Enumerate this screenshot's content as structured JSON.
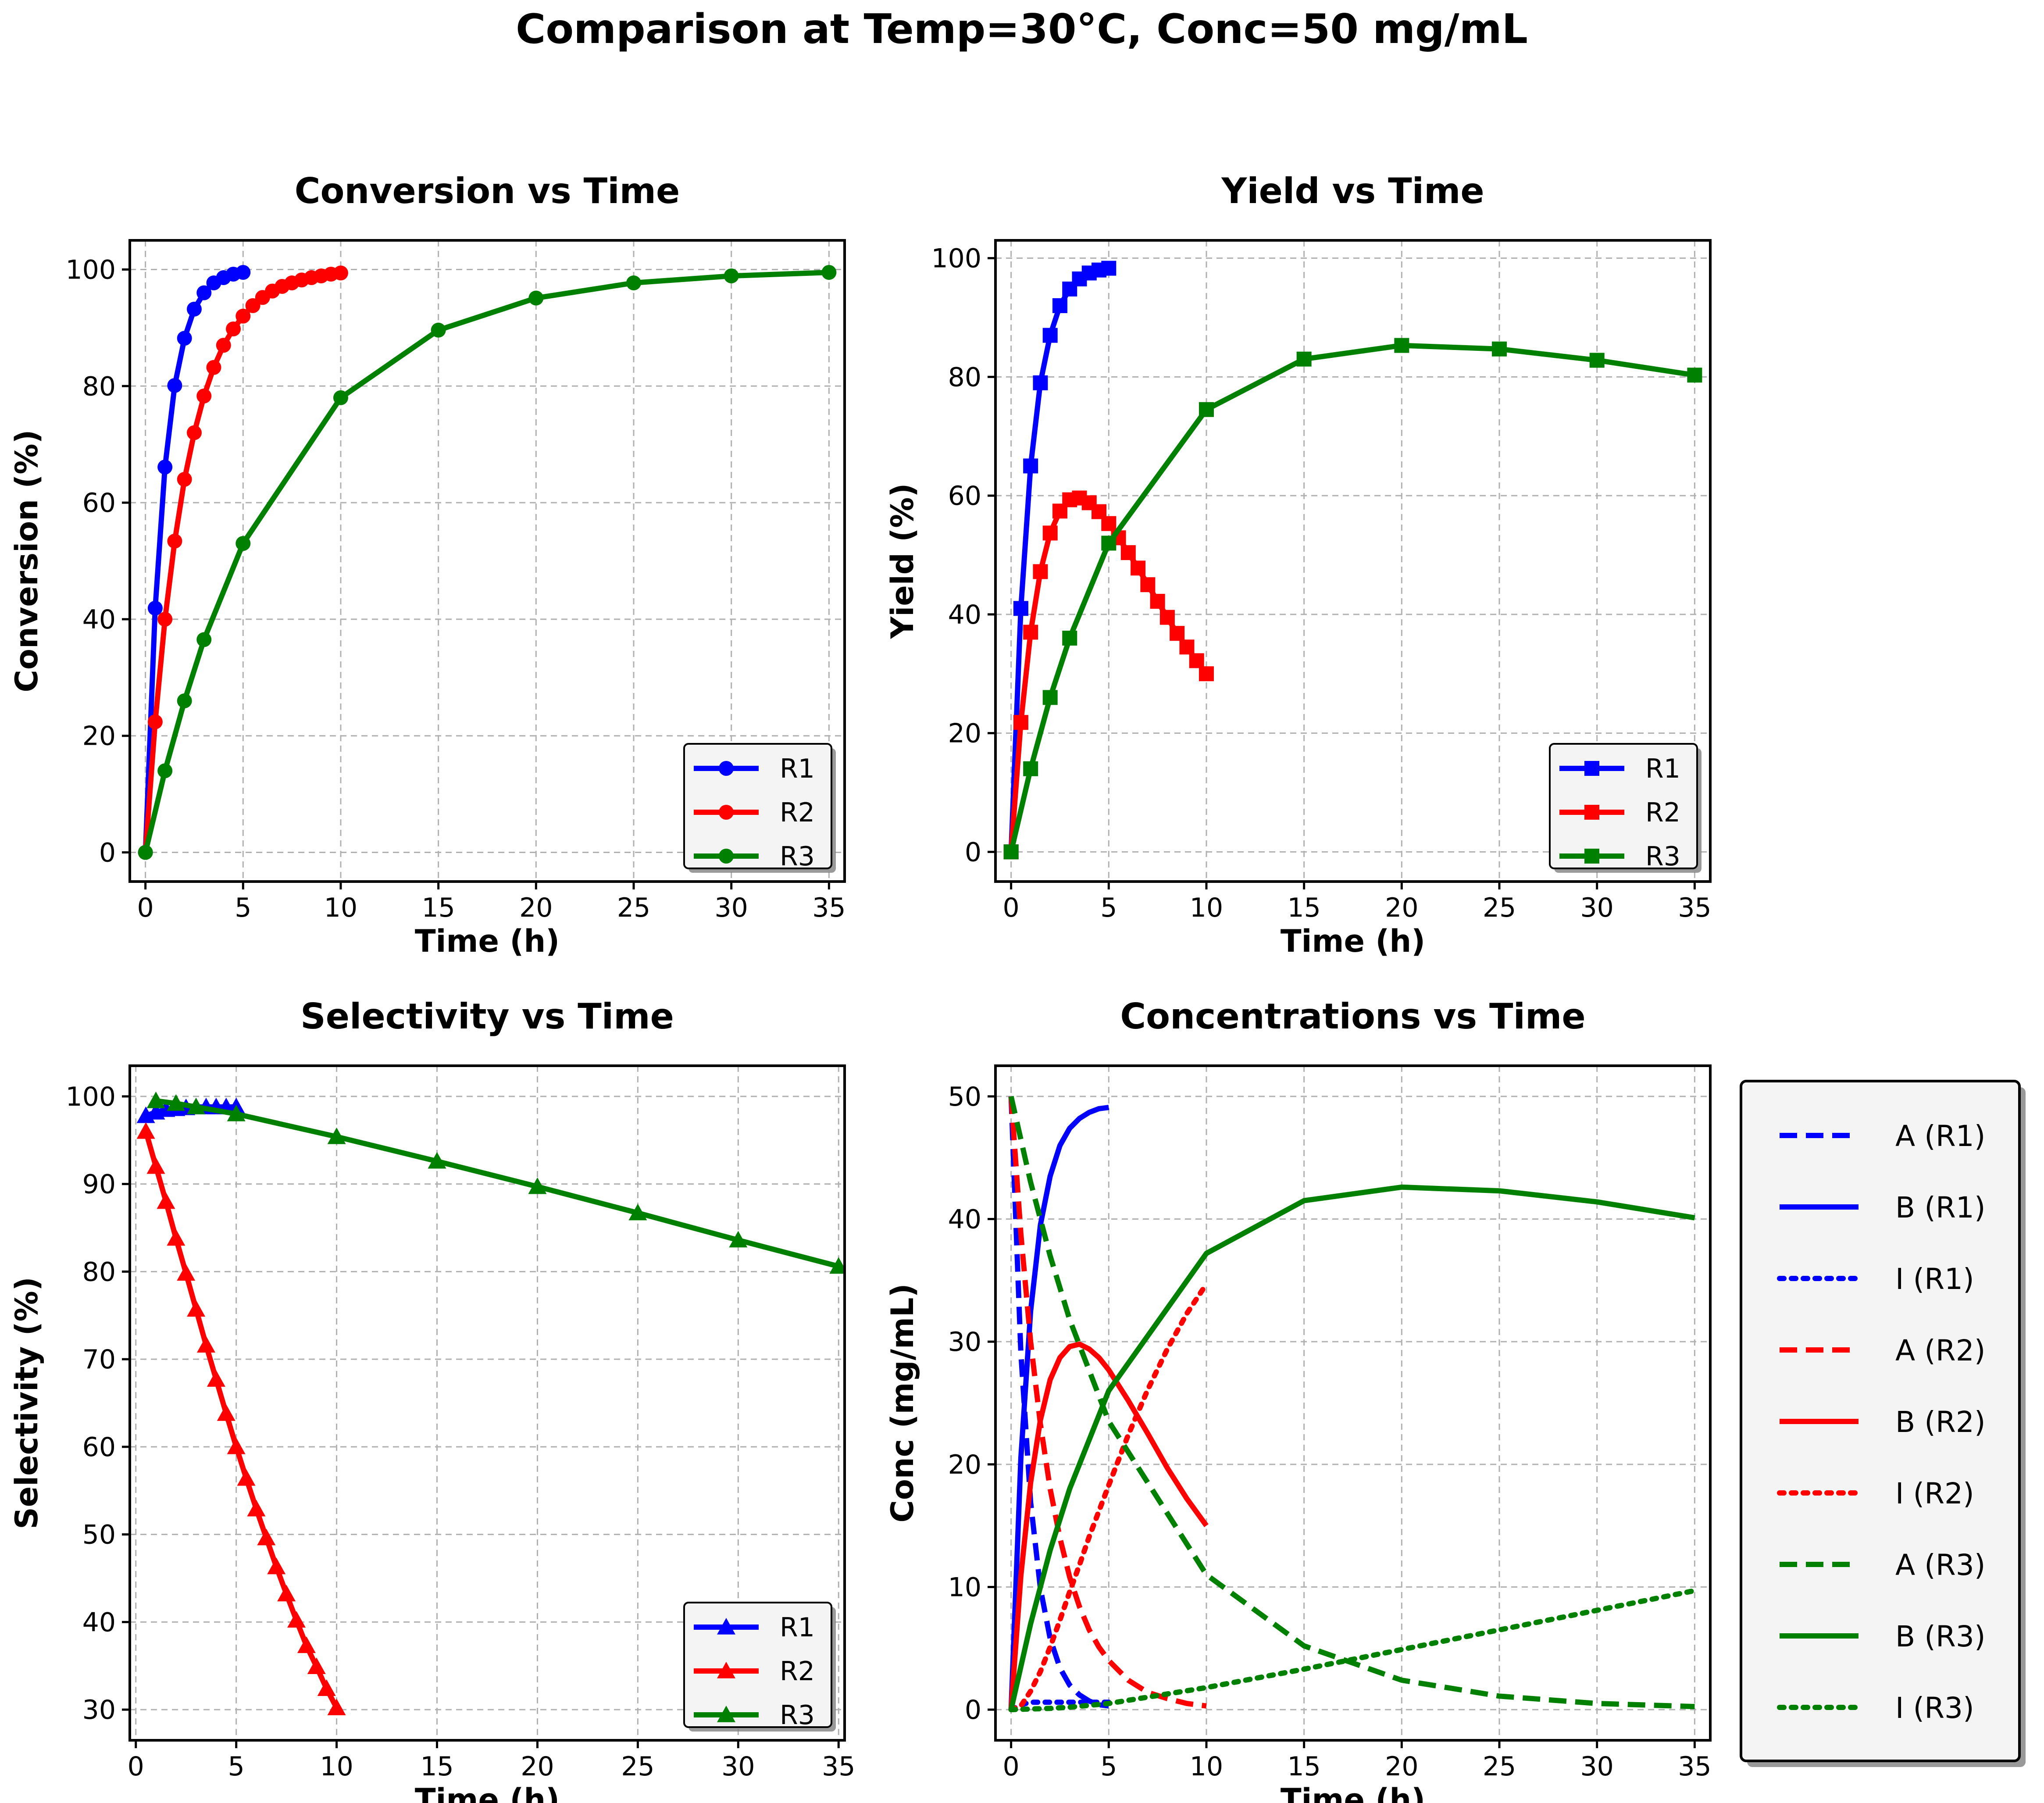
{
  "figure": {
    "title": "Comparison at Temp=30°C, Conc=50 mg/mL"
  },
  "colors": {
    "R1": "#0000ff",
    "R2": "#ff0000",
    "R3": "#008000"
  },
  "chart_data": [
    {
      "id": "conversion",
      "type": "line",
      "title": "Conversion vs Time",
      "xlabel": "Time (h)",
      "ylabel": "Conversion (%)",
      "xlim": [
        -0.8,
        35.8
      ],
      "ylim": [
        -5,
        105
      ],
      "xticks": [
        0,
        5,
        10,
        15,
        20,
        25,
        30,
        35
      ],
      "yticks": [
        0,
        20,
        40,
        60,
        80,
        100
      ],
      "grid": true,
      "legend": "lower-right",
      "marker": "circle",
      "series": [
        {
          "name": "R1",
          "color": "#0000ff",
          "x": [
            0,
            0.5,
            1,
            1.5,
            2,
            2.5,
            3,
            3.5,
            4,
            4.5,
            5
          ],
          "y": [
            0,
            41.9,
            66.1,
            80.1,
            88.2,
            93.2,
            96.0,
            97.7,
            98.6,
            99.2,
            99.5
          ]
        },
        {
          "name": "R2",
          "color": "#ff0000",
          "x": [
            0,
            0.5,
            1,
            1.5,
            2,
            2.5,
            3,
            3.5,
            4,
            4.5,
            5,
            5.5,
            6,
            6.5,
            7,
            7.5,
            8,
            8.5,
            9,
            9.5,
            10
          ],
          "y": [
            0,
            22.4,
            40.0,
            53.4,
            64.0,
            72.0,
            78.3,
            83.2,
            87.0,
            89.8,
            92.0,
            93.8,
            95.2,
            96.3,
            97.1,
            97.7,
            98.2,
            98.6,
            98.9,
            99.2,
            99.4
          ]
        },
        {
          "name": "R3",
          "color": "#008000",
          "x": [
            0,
            1,
            2,
            3,
            5,
            10,
            15,
            20,
            25,
            30,
            35
          ],
          "y": [
            0,
            14.0,
            26.0,
            36.5,
            53.0,
            78.0,
            89.6,
            95.1,
            97.7,
            98.9,
            99.5
          ]
        }
      ]
    },
    {
      "id": "yield",
      "type": "line",
      "title": "Yield vs Time",
      "xlabel": "Time (h)",
      "ylabel": "Yield (%)",
      "xlim": [
        -0.8,
        35.8
      ],
      "ylim": [
        -5,
        103
      ],
      "xticks": [
        0,
        5,
        10,
        15,
        20,
        25,
        30,
        35
      ],
      "yticks": [
        0,
        20,
        40,
        60,
        80,
        100
      ],
      "grid": true,
      "legend": "lower-right",
      "marker": "square",
      "series": [
        {
          "name": "R1",
          "color": "#0000ff",
          "x": [
            0,
            0.5,
            1,
            1.5,
            2,
            2.5,
            3,
            3.5,
            4,
            4.5,
            5
          ],
          "y": [
            0,
            41.0,
            65.0,
            79.0,
            87.0,
            92.0,
            94.8,
            96.5,
            97.5,
            98.0,
            98.3
          ]
        },
        {
          "name": "R2",
          "color": "#ff0000",
          "x": [
            0,
            0.5,
            1,
            1.5,
            2,
            2.5,
            3,
            3.5,
            4,
            4.5,
            5,
            5.5,
            6,
            6.5,
            7,
            7.5,
            8,
            8.5,
            9,
            9.5,
            10
          ],
          "y": [
            0,
            21.8,
            37.0,
            47.2,
            53.7,
            57.4,
            59.3,
            59.6,
            58.8,
            57.3,
            55.3,
            52.9,
            50.4,
            47.8,
            45.0,
            42.2,
            39.5,
            36.8,
            34.5,
            32.2,
            30.0
          ]
        },
        {
          "name": "R3",
          "color": "#008000",
          "x": [
            0,
            1,
            2,
            3,
            5,
            10,
            15,
            20,
            25,
            30,
            35
          ],
          "y": [
            0,
            14.0,
            26.0,
            36.0,
            52.0,
            74.5,
            83.0,
            85.3,
            84.7,
            82.8,
            80.3
          ]
        }
      ]
    },
    {
      "id": "selectivity",
      "type": "line",
      "title": "Selectivity vs Time",
      "xlabel": "Time (h)",
      "ylabel": "Selectivity (%)",
      "xlim": [
        -0.3,
        35.3
      ],
      "ylim": [
        26.5,
        103.5
      ],
      "xticks": [
        0,
        5,
        10,
        15,
        20,
        25,
        30,
        35
      ],
      "yticks": [
        30,
        40,
        50,
        60,
        70,
        80,
        90,
        100
      ],
      "grid": true,
      "legend": "lower-right",
      "marker": "triangle",
      "series": [
        {
          "name": "R1",
          "color": "#0000ff",
          "x": [
            0.5,
            1,
            1.5,
            2,
            2.5,
            3,
            3.5,
            4,
            4.5,
            5
          ],
          "y": [
            97.8,
            98.2,
            98.5,
            98.6,
            98.7,
            98.8,
            98.8,
            98.8,
            98.8,
            98.8
          ]
        },
        {
          "name": "R2",
          "color": "#ff0000",
          "x": [
            0.5,
            1,
            1.5,
            2,
            2.5,
            3,
            3.5,
            4,
            4.5,
            5,
            5.5,
            6,
            6.5,
            7,
            7.5,
            8,
            8.5,
            9,
            9.5,
            10
          ],
          "y": [
            96.0,
            92.0,
            88.0,
            83.8,
            79.8,
            75.7,
            71.6,
            67.7,
            63.8,
            60.0,
            56.4,
            52.9,
            49.6,
            46.3,
            43.2,
            40.2,
            37.3,
            34.9,
            32.4,
            30.2
          ]
        },
        {
          "name": "R3",
          "color": "#008000",
          "x": [
            1,
            2,
            3,
            5,
            10,
            15,
            20,
            25,
            30,
            35
          ],
          "y": [
            99.5,
            99.2,
            98.8,
            98.0,
            95.4,
            92.6,
            89.7,
            86.7,
            83.6,
            80.6
          ]
        }
      ]
    },
    {
      "id": "concentrations",
      "type": "line",
      "title": "Concentrations vs Time",
      "xlabel": "Time (h)",
      "ylabel": "Conc (mg/mL)",
      "xlim": [
        -0.8,
        35.8
      ],
      "ylim": [
        -2.5,
        52.5
      ],
      "xticks": [
        0,
        5,
        10,
        15,
        20,
        25,
        30,
        35
      ],
      "yticks": [
        0,
        10,
        20,
        30,
        40,
        50
      ],
      "grid": true,
      "legend": "outside-right",
      "marker": "none",
      "series": [
        {
          "name": "A (R1)",
          "color": "#0000ff",
          "style": "dashed",
          "x": [
            0,
            0.5,
            1,
            1.5,
            2,
            2.5,
            3,
            3.5,
            4,
            4.5,
            5
          ],
          "y": [
            50,
            29.1,
            16.9,
            9.9,
            5.8,
            3.4,
            2.0,
            1.2,
            0.7,
            0.4,
            0.3
          ]
        },
        {
          "name": "B (R1)",
          "color": "#0000ff",
          "style": "solid",
          "x": [
            0,
            0.5,
            1,
            1.5,
            2,
            2.5,
            3,
            3.5,
            4,
            4.5,
            5
          ],
          "y": [
            0,
            20.5,
            32.5,
            39.5,
            43.5,
            46.0,
            47.4,
            48.2,
            48.7,
            49.0,
            49.1
          ]
        },
        {
          "name": "I (R1)",
          "color": "#0000ff",
          "style": "dotted",
          "x": [
            0,
            0.5,
            1,
            1.5,
            2,
            2.5,
            3,
            3.5,
            4,
            4.5,
            5
          ],
          "y": [
            0,
            0.4,
            0.6,
            0.6,
            0.6,
            0.6,
            0.6,
            0.6,
            0.6,
            0.6,
            0.6
          ]
        },
        {
          "name": "A (R2)",
          "color": "#ff0000",
          "style": "dashed",
          "x": [
            0,
            0.5,
            1,
            1.5,
            2,
            2.5,
            3,
            3.5,
            4,
            4.5,
            5,
            6,
            7,
            8,
            9,
            10
          ],
          "y": [
            50,
            38.8,
            30.0,
            23.3,
            18.0,
            14.0,
            10.8,
            8.4,
            6.5,
            5.1,
            4.0,
            2.4,
            1.4,
            0.9,
            0.5,
            0.3
          ]
        },
        {
          "name": "B (R2)",
          "color": "#ff0000",
          "style": "solid",
          "x": [
            0,
            0.5,
            1,
            1.5,
            2,
            2.5,
            3,
            3.5,
            4,
            4.5,
            5,
            6,
            7,
            8,
            9,
            10
          ],
          "y": [
            0,
            10.9,
            18.5,
            23.6,
            26.9,
            28.7,
            29.6,
            29.8,
            29.4,
            28.7,
            27.7,
            25.2,
            22.5,
            19.7,
            17.2,
            15.0
          ]
        },
        {
          "name": "I (R2)",
          "color": "#ff0000",
          "style": "dotted",
          "x": [
            0,
            0.5,
            1,
            1.5,
            2,
            2.5,
            3,
            3.5,
            4,
            4.5,
            5,
            6,
            7,
            8,
            9,
            10
          ],
          "y": [
            0,
            0.3,
            1.5,
            3.1,
            5.1,
            7.3,
            9.6,
            11.8,
            14.1,
            16.2,
            18.3,
            22.4,
            26.1,
            29.4,
            32.3,
            34.7
          ]
        },
        {
          "name": "A (R3)",
          "color": "#008000",
          "style": "dashed",
          "x": [
            0,
            1,
            2,
            3,
            5,
            10,
            15,
            20,
            25,
            30,
            35
          ],
          "y": [
            50,
            43.0,
            37.0,
            31.8,
            23.5,
            11.0,
            5.2,
            2.4,
            1.1,
            0.5,
            0.25
          ]
        },
        {
          "name": "B (R3)",
          "color": "#008000",
          "style": "solid",
          "x": [
            0,
            1,
            2,
            3,
            5,
            10,
            15,
            20,
            25,
            30,
            35
          ],
          "y": [
            0,
            7.0,
            13.0,
            18.0,
            26.0,
            37.2,
            41.5,
            42.6,
            42.3,
            41.4,
            40.1
          ]
        },
        {
          "name": "I (R3)",
          "color": "#008000",
          "style": "dotted",
          "x": [
            0,
            1,
            2,
            3,
            5,
            10,
            15,
            20,
            25,
            30,
            35
          ],
          "y": [
            0,
            0.05,
            0.1,
            0.2,
            0.5,
            1.8,
            3.3,
            4.9,
            6.5,
            8.1,
            9.7
          ]
        }
      ]
    }
  ]
}
